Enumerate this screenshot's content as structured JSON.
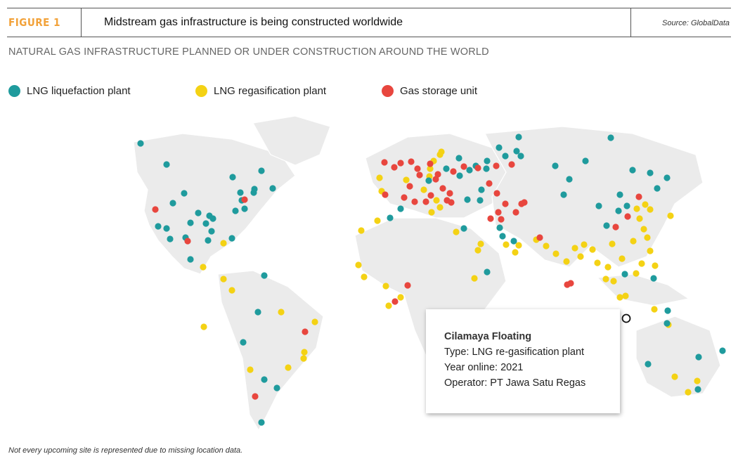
{
  "header": {
    "figure_label": "FIGURE 1",
    "title": "Midstream gas infrastructure is being constructed worldwide",
    "source": "Source: GlobalData"
  },
  "subtitle": "NATURAL GAS INFRASTRUCTURE PLANNED OR UNDER CONSTRUCTION AROUND THE WORLD",
  "legend": [
    {
      "label": "LNG liquefaction plant",
      "color": "#1f9b9d"
    },
    {
      "label": "LNG regasification plant",
      "color": "#f4d214"
    },
    {
      "label": "Gas storage unit",
      "color": "#e8463e"
    }
  ],
  "tooltip": {
    "name": "Cilamaya Floating",
    "type": "Type: LNG re-gasification plant",
    "year": "Year online: 2021",
    "operator": "Operator: PT Jawa Satu Regas"
  },
  "footnote": "Not every upcoming site is represented due to missing location data."
}
